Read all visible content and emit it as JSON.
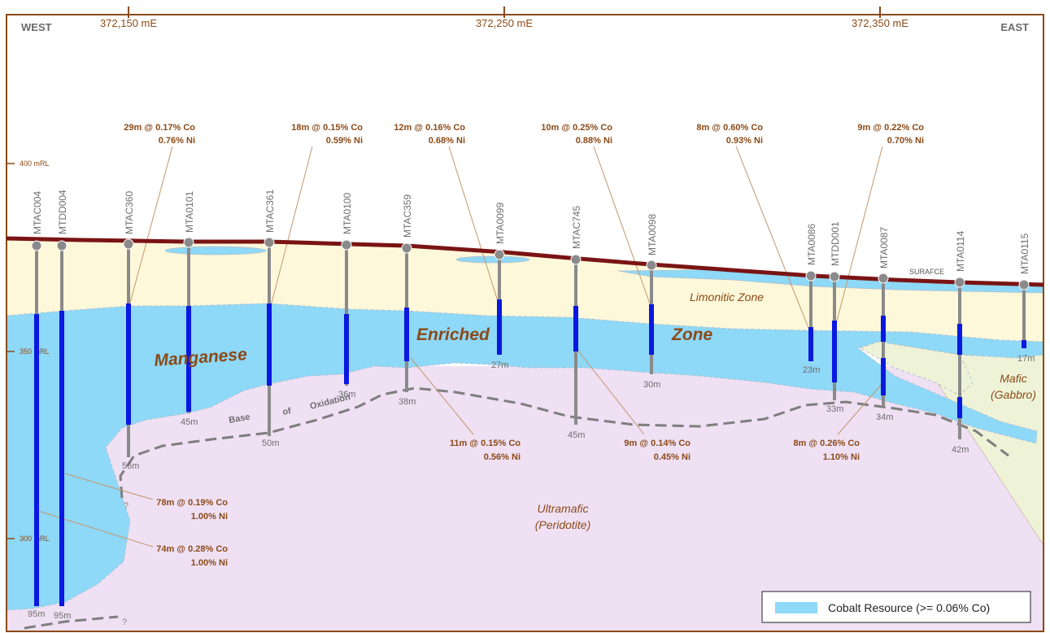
{
  "axis": {
    "west": "WEST",
    "east": "EAST",
    "eastings": [
      "372,150 mE",
      "372,250 mE",
      "372,350 mE"
    ],
    "rl": [
      "400 mRL",
      "350 mRL",
      "300 mRL"
    ]
  },
  "holes": [
    {
      "name": "MTAC004",
      "depth": "95m"
    },
    {
      "name": "MTDD004",
      "depth": "95m"
    },
    {
      "name": "MTAC360",
      "depth": "56m"
    },
    {
      "name": "MTA0101",
      "depth": "45m"
    },
    {
      "name": "MTAC361",
      "depth": "50m"
    },
    {
      "name": "MTA0100",
      "depth": "36m"
    },
    {
      "name": "MTAC359",
      "depth": "38m"
    },
    {
      "name": "MTA0099",
      "depth": "27m"
    },
    {
      "name": "MTAC745",
      "depth": "45m"
    },
    {
      "name": "MTA0098",
      "depth": "30m"
    },
    {
      "name": "MTA0086",
      "depth": "23m"
    },
    {
      "name": "MTDD001",
      "depth": "33m"
    },
    {
      "name": "MTA0087",
      "depth": "34m"
    },
    {
      "name": "MTA0114",
      "depth": "42m"
    },
    {
      "name": "MTA0115",
      "depth": "17m"
    }
  ],
  "intercepts": [
    {
      "co": "29m @ 0.17% Co",
      "ni": "0.76% Ni"
    },
    {
      "co": "18m @ 0.15% Co",
      "ni": "0.59% Ni"
    },
    {
      "co": "12m @ 0.16% Co",
      "ni": "0.68% Ni"
    },
    {
      "co": "10m @ 0.25% Co",
      "ni": "0.88% Ni"
    },
    {
      "co": "8m @ 0.60% Co",
      "ni": "0.93% Ni"
    },
    {
      "co": "9m @ 0.22% Co",
      "ni": "0.70% Ni"
    },
    {
      "co": "11m @ 0.15% Co",
      "ni": "0.56% Ni"
    },
    {
      "co": "9m @ 0.14% Co",
      "ni": "0.45% Ni"
    },
    {
      "co": "8m @ 0.26% Co",
      "ni": "1.10% Ni"
    },
    {
      "co": "78m @ 0.19% Co",
      "ni": "1.00% Ni"
    },
    {
      "co": "74m @ 0.28% Co",
      "ni": "1.00% Ni"
    }
  ],
  "zones": {
    "manganese": "Manganese",
    "enriched": "Enriched",
    "zone": "Zone",
    "limonitic": "Limonitic Zone",
    "mafic_1": "Mafic",
    "mafic_2": "(Gabbro)",
    "ultramafic_1": "Ultramafic",
    "ultramafic_2": "(Peridotite)",
    "surface": "SURAFCE",
    "base_1": "Base",
    "base_2": "of",
    "base_3": "Oxidation",
    "query": "?"
  },
  "legend": {
    "label": "Cobalt Resource (>= 0.06% Co)",
    "color": "#8ed8f8"
  },
  "colors": {
    "frame": "#8b4a17",
    "limonite": "#fdf8da",
    "resource": "#8ed8f8",
    "ultramafic": "#efe0f4",
    "mafic": "#eef3d8",
    "surface": "#7a1414",
    "intercept": "#0a18e0",
    "hole": "#8a8a8a"
  }
}
